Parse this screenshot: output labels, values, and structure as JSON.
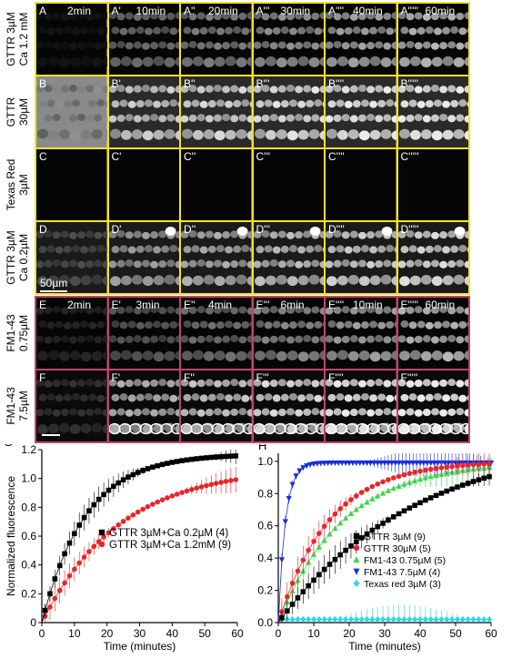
{
  "rows_yellow": [
    {
      "label_lines": [
        "GTTR 3µM",
        "Ca 1.2 mM"
      ],
      "panels": [
        {
          "id": "A",
          "time": "2min"
        },
        {
          "id": "A'",
          "time": "10min"
        },
        {
          "id": "A''",
          "time": "20min"
        },
        {
          "id": "A'''",
          "time": "30min"
        },
        {
          "id": "A''''",
          "time": "40min"
        },
        {
          "id": "A'''''",
          "time": "60min"
        }
      ],
      "style": "dim"
    },
    {
      "label_lines": [
        "GTTR",
        "30µM"
      ],
      "panels": [
        {
          "id": "B",
          "time": ""
        },
        {
          "id": "B'",
          "time": ""
        },
        {
          "id": "B''",
          "time": ""
        },
        {
          "id": "B'''",
          "time": ""
        },
        {
          "id": "B''''",
          "time": ""
        },
        {
          "id": "B'''''",
          "time": ""
        }
      ],
      "style": "bright"
    },
    {
      "label_lines": [
        "Texas Red",
        "3µM"
      ],
      "panels": [
        {
          "id": "C",
          "time": ""
        },
        {
          "id": "C'",
          "time": ""
        },
        {
          "id": "C''",
          "time": ""
        },
        {
          "id": "C'''",
          "time": ""
        },
        {
          "id": "C''''",
          "time": ""
        },
        {
          "id": "C'''''",
          "time": ""
        }
      ],
      "style": "dark"
    },
    {
      "label_lines": [
        "GTTR 3µM",
        "Ca 0.2µM"
      ],
      "panels": [
        {
          "id": "D",
          "time": ""
        },
        {
          "id": "D'",
          "time": ""
        },
        {
          "id": "D''",
          "time": ""
        },
        {
          "id": "D'''",
          "time": ""
        },
        {
          "id": "D''''",
          "time": ""
        },
        {
          "id": "D'''''",
          "time": ""
        }
      ],
      "style": "medium",
      "scalebar": "50µm"
    }
  ],
  "rows_pink": [
    {
      "label_lines": [
        "FM1-43",
        "0.75µM"
      ],
      "panels": [
        {
          "id": "E",
          "time": "2min"
        },
        {
          "id": "E'",
          "time": "3min"
        },
        {
          "id": "E''",
          "time": "4min"
        },
        {
          "id": "E'''",
          "time": "6min"
        },
        {
          "id": "E''''",
          "time": "10min"
        },
        {
          "id": "E'''''",
          "time": "60min"
        }
      ],
      "style": "fm-dim"
    },
    {
      "label_lines": [
        "FM1-43",
        "7.5µM"
      ],
      "panels": [
        {
          "id": "F",
          "time": ""
        },
        {
          "id": "F'",
          "time": ""
        },
        {
          "id": "F''",
          "time": ""
        },
        {
          "id": "F'''",
          "time": ""
        },
        {
          "id": "F''''",
          "time": ""
        },
        {
          "id": "F'''''",
          "time": ""
        }
      ],
      "style": "fm-bright"
    }
  ],
  "colors": {
    "yellow_border": "#f2e32b",
    "pink_border": "#c2456c"
  },
  "chart_data": [
    {
      "panel_label": "G",
      "type": "scatter",
      "xlabel": "Time (minutes)",
      "ylabel": "Normalized fluorescence",
      "xlim": [
        0,
        60
      ],
      "ylim": [
        0,
        1.2
      ],
      "xticks": [
        0,
        10,
        20,
        30,
        40,
        50,
        60
      ],
      "yticks": [
        0,
        0.2,
        0.4,
        0.6,
        0.8,
        1.0,
        1.2
      ],
      "ytick_labels": [
        "0",
        "0.2",
        "0.4",
        "0.6",
        "0.8",
        "1.0",
        "1.2"
      ],
      "legend_position": "center-right",
      "series": [
        {
          "name": "GTTR 3µM+Ca 0.2µM (4)",
          "color": "#000000",
          "marker": "square",
          "k": 0.075,
          "plateau": 1.17
        },
        {
          "name": "GTTR 3µM+Ca 1.2mM (9)",
          "color": "#e8262a",
          "marker": "circle",
          "k": 0.042,
          "plateau": 1.08
        }
      ]
    },
    {
      "panel_label": "H",
      "type": "scatter",
      "xlabel": "Time (minutes)",
      "ylabel": "Normalized fluorescence",
      "xlim": [
        0,
        60
      ],
      "ylim": [
        0,
        1.05
      ],
      "xticks": [
        0,
        10,
        20,
        30,
        40,
        50,
        60
      ],
      "yticks": [
        0,
        0.2,
        0.4,
        0.6,
        0.8,
        1.0
      ],
      "ytick_labels": [
        "0.0",
        "0.2",
        "0.4",
        "0.6",
        "0.8",
        "1.0"
      ],
      "legend_position": "center-right",
      "series": [
        {
          "name": "GTTR 3µM (9)",
          "color": "#000000",
          "marker": "square",
          "k": 0.026,
          "plateau": 1.15
        },
        {
          "name": "GTTR 30µM (5)",
          "color": "#e8262a",
          "marker": "circle",
          "k": 0.07,
          "plateau": 1.0
        },
        {
          "name": "FM1-43 0.75µM (5)",
          "color": "#43d34a",
          "marker": "triangle-up",
          "k": 0.055,
          "plateau": 1.0
        },
        {
          "name": "FM1-43 7.5µM (4)",
          "color": "#1a2fd6",
          "marker": "triangle-down",
          "k": 0.5,
          "plateau": 0.99
        },
        {
          "name": "Texas red 3µM (3)",
          "color": "#2fd6e8",
          "marker": "diamond",
          "k": 0,
          "plateau": 0.02
        }
      ]
    }
  ]
}
